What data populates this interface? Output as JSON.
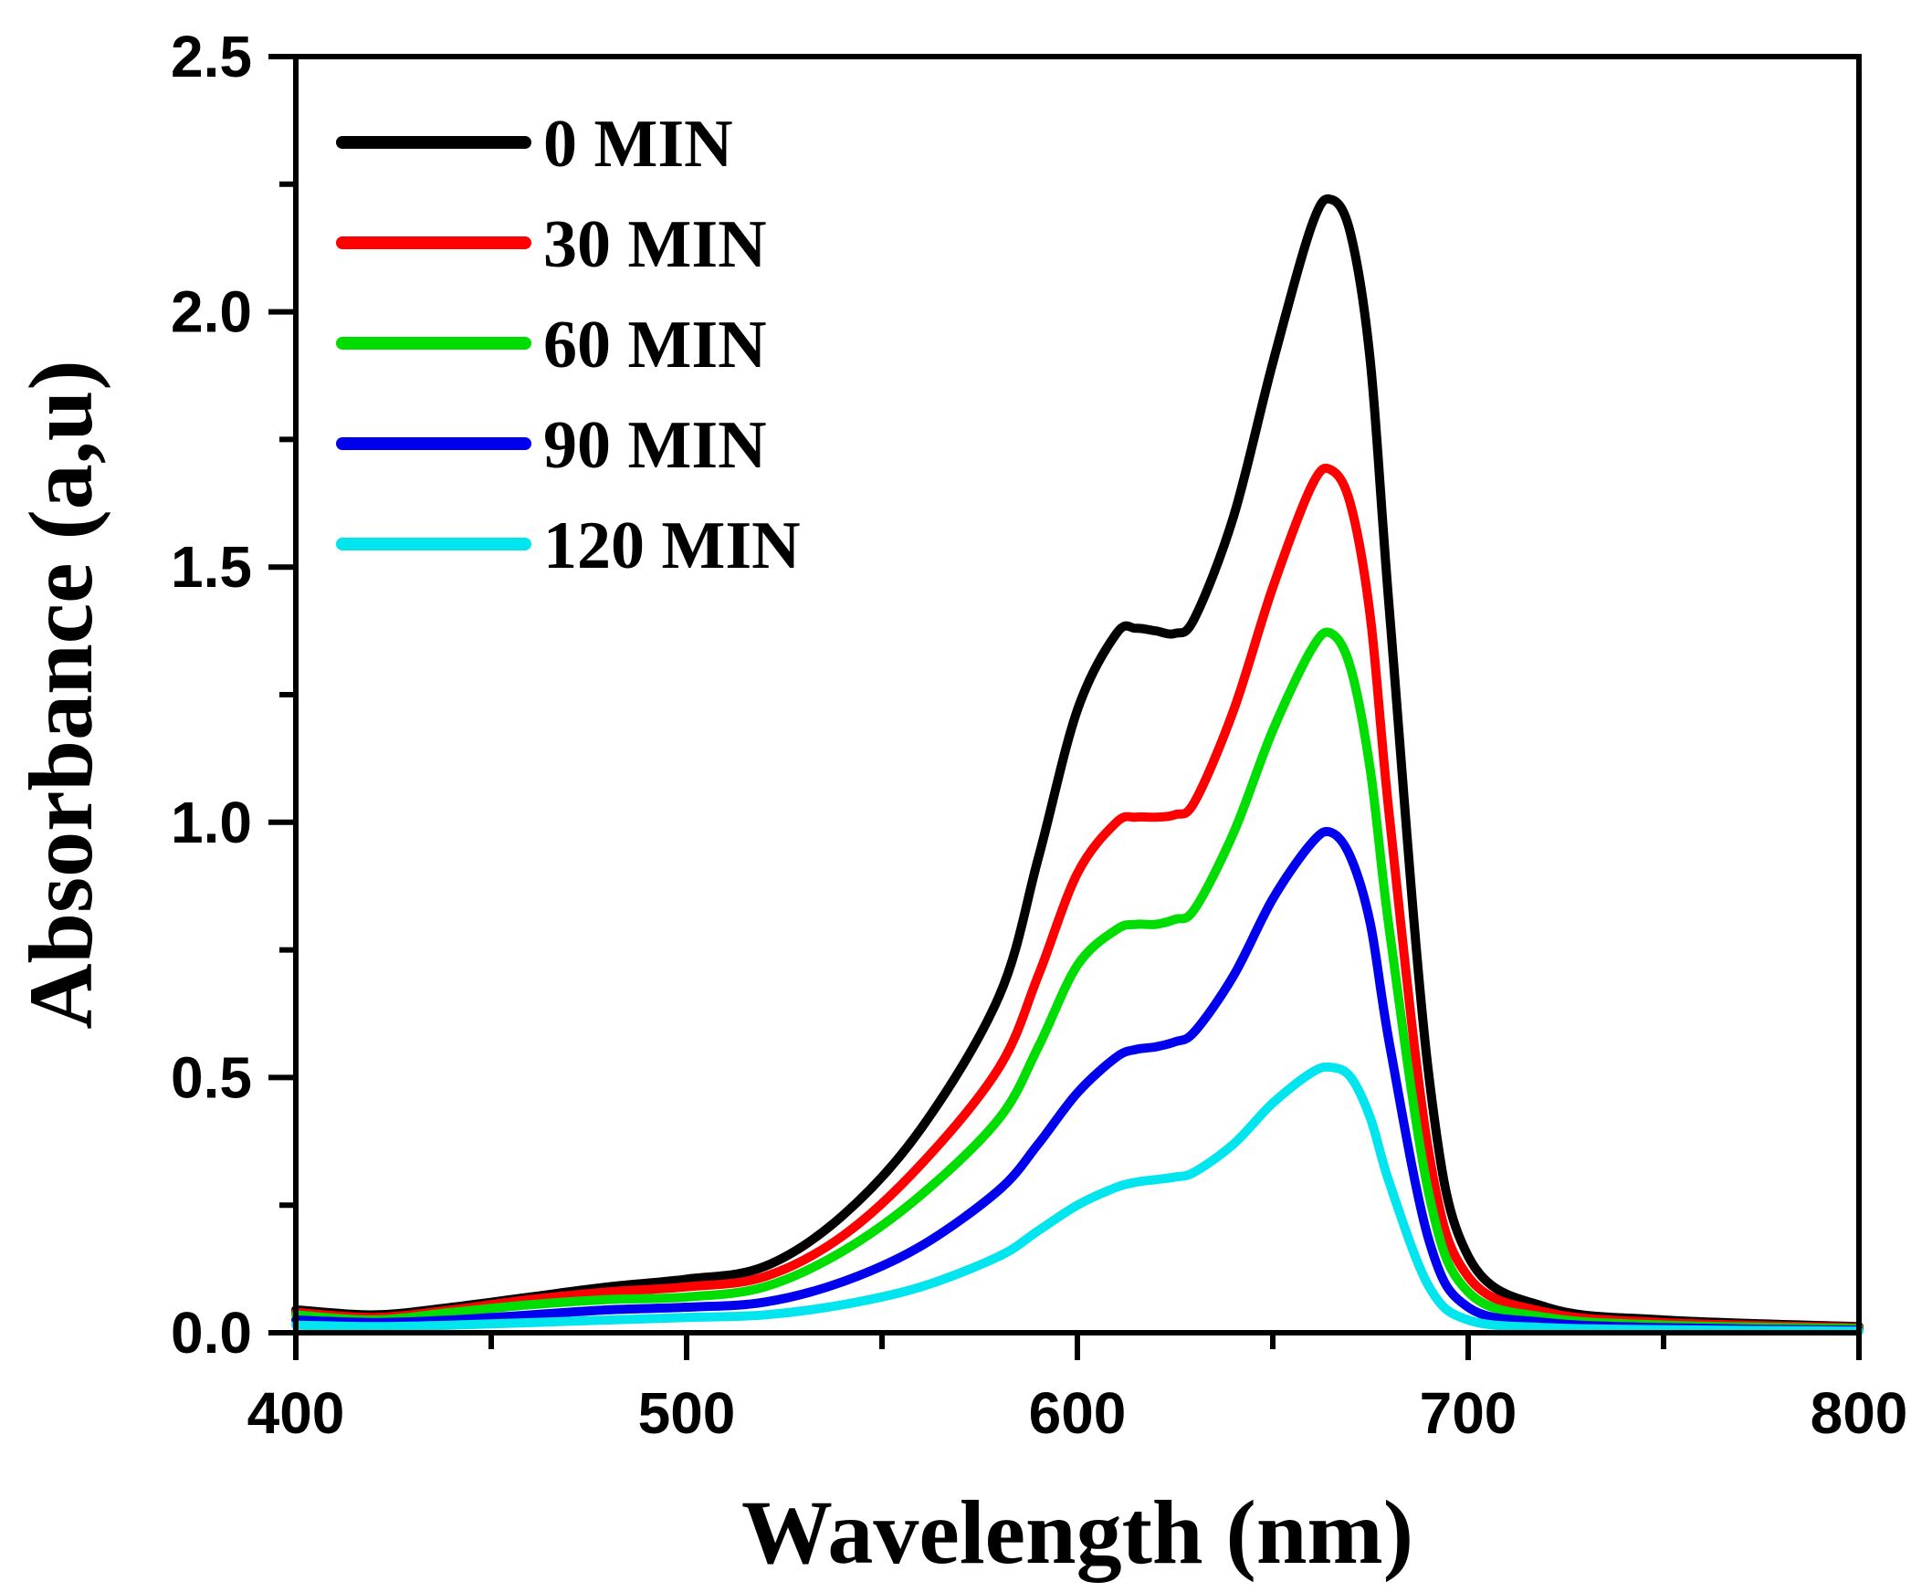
{
  "chart_data": {
    "type": "line",
    "title": "",
    "xlabel": "Wavelength (nm)",
    "ylabel": "Absorbance (a,u)",
    "xlim": [
      400,
      800
    ],
    "ylim": [
      0,
      2.5
    ],
    "x_ticks": [
      400,
      500,
      600,
      700,
      800
    ],
    "x_tick_labels": [
      "400",
      "500",
      "600",
      "700",
      "800"
    ],
    "y_ticks": [
      0,
      0.5,
      1.0,
      1.5,
      2.0,
      2.5
    ],
    "y_tick_labels": [
      "0.0",
      "0.5",
      "1.0",
      "1.5",
      "2.0",
      "2.5"
    ],
    "grid": false,
    "legend_position": "top-left",
    "x": [
      400,
      420,
      440,
      460,
      480,
      500,
      520,
      540,
      560,
      580,
      590,
      600,
      610,
      615,
      620,
      625,
      630,
      640,
      650,
      660,
      665,
      670,
      675,
      680,
      690,
      700,
      720,
      750,
      800
    ],
    "series": [
      {
        "name": "0 MIN",
        "color": "#000000",
        "values": [
          0.045,
          0.035,
          0.05,
          0.07,
          0.09,
          0.105,
          0.13,
          0.23,
          0.4,
          0.66,
          0.93,
          1.22,
          1.37,
          1.38,
          1.375,
          1.37,
          1.4,
          1.6,
          1.9,
          2.17,
          2.22,
          2.15,
          1.9,
          1.4,
          0.5,
          0.15,
          0.05,
          0.025,
          0.012
        ]
      },
      {
        "name": "30 MIN",
        "color": "#ff0000",
        "values": [
          0.04,
          0.03,
          0.045,
          0.065,
          0.08,
          0.09,
          0.11,
          0.19,
          0.33,
          0.52,
          0.7,
          0.9,
          1.0,
          1.01,
          1.01,
          1.015,
          1.04,
          1.22,
          1.46,
          1.66,
          1.69,
          1.62,
          1.4,
          1.0,
          0.35,
          0.11,
          0.04,
          0.02,
          0.01
        ]
      },
      {
        "name": "60 MIN",
        "color": "#00dd00",
        "values": [
          0.035,
          0.025,
          0.04,
          0.055,
          0.065,
          0.07,
          0.09,
          0.16,
          0.27,
          0.42,
          0.56,
          0.72,
          0.79,
          0.8,
          0.8,
          0.81,
          0.83,
          0.98,
          1.18,
          1.34,
          1.37,
          1.3,
          1.1,
          0.78,
          0.27,
          0.08,
          0.03,
          0.015,
          0.008
        ]
      },
      {
        "name": "90 MIN",
        "color": "#0000ee",
        "values": [
          0.025,
          0.02,
          0.025,
          0.035,
          0.045,
          0.05,
          0.06,
          0.1,
          0.17,
          0.28,
          0.37,
          0.47,
          0.54,
          0.555,
          0.56,
          0.57,
          0.59,
          0.7,
          0.85,
          0.96,
          0.98,
          0.93,
          0.8,
          0.56,
          0.18,
          0.05,
          0.02,
          0.01,
          0.005
        ]
      },
      {
        "name": "120 MIN",
        "color": "#00e5ee",
        "values": [
          0.015,
          0.012,
          0.015,
          0.02,
          0.025,
          0.03,
          0.035,
          0.055,
          0.09,
          0.15,
          0.2,
          0.25,
          0.285,
          0.295,
          0.3,
          0.305,
          0.315,
          0.37,
          0.45,
          0.51,
          0.52,
          0.5,
          0.42,
          0.29,
          0.09,
          0.025,
          0.01,
          0.006,
          0.003
        ]
      }
    ]
  }
}
